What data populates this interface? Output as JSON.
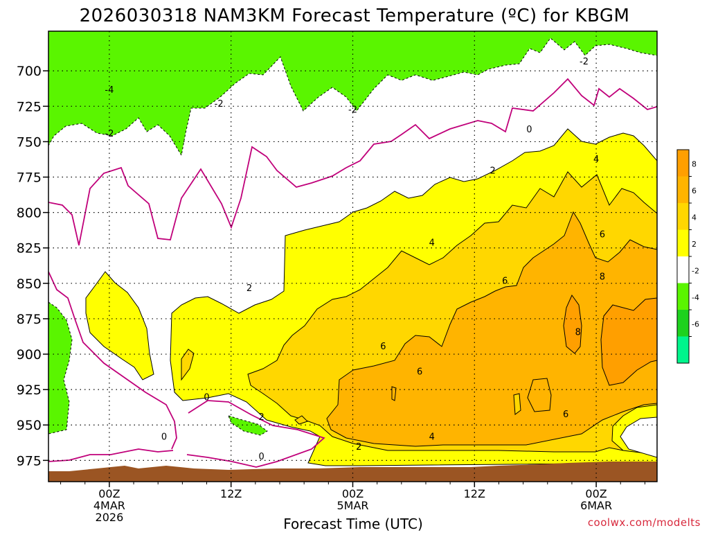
{
  "chart_data": {
    "type": "heatmap",
    "title": "2026030318 NAM3KM Forecast Temperature (ºC) for KBGM",
    "xlabel": "Forecast Time (UTC)",
    "ylabel": "",
    "watermark": "coolwx.com/modelts",
    "x_range_hours": [
      -5,
      45
    ],
    "y_range_hpa": [
      990,
      672
    ],
    "y_ticks": [
      {
        "value": 700,
        "label": "700"
      },
      {
        "value": 725,
        "label": "725"
      },
      {
        "value": 750,
        "label": "750"
      },
      {
        "value": 775,
        "label": "775"
      },
      {
        "value": 800,
        "label": "800"
      },
      {
        "value": 825,
        "label": "825"
      },
      {
        "value": 850,
        "label": "850"
      },
      {
        "value": 875,
        "label": "875"
      },
      {
        "value": 900,
        "label": "900"
      },
      {
        "value": 925,
        "label": "925"
      },
      {
        "value": 950,
        "label": "950"
      },
      {
        "value": 975,
        "label": "975"
      }
    ],
    "x_ticks": [
      {
        "hour": 0,
        "line1": "00Z",
        "line2": "4MAR",
        "line3": "2026"
      },
      {
        "hour": 10,
        "line1": "12Z",
        "line2": "",
        "line3": ""
      },
      {
        "hour": 20,
        "line1": "00Z",
        "line2": "5MAR",
        "line3": ""
      },
      {
        "hour": 30,
        "line1": "12Z",
        "line2": "",
        "line3": ""
      },
      {
        "hour": 40,
        "line1": "00Z",
        "line2": "6MAR",
        "line3": ""
      }
    ],
    "colorbar": [
      {
        "range": [
          8,
          10
        ],
        "color": "#ff9f00",
        "label": "8"
      },
      {
        "range": [
          6,
          8
        ],
        "color": "#ffb400",
        "label": "6"
      },
      {
        "range": [
          4,
          6
        ],
        "color": "#ffd700",
        "label": "4"
      },
      {
        "range": [
          2,
          4
        ],
        "color": "#ffff00",
        "label": "2"
      },
      {
        "range": [
          -2,
          2
        ],
        "color": "#ffffff",
        "label": "-2"
      },
      {
        "range": [
          -4,
          -2
        ],
        "color": "#5af500",
        "label": "-4"
      },
      {
        "range": [
          -6,
          -4
        ],
        "color": "#1ed21e",
        "label": "-6"
      },
      {
        "range": [
          -8,
          -6
        ],
        "color": "#00f58c",
        "label": ""
      }
    ],
    "ground_color": "#9b5523",
    "zero_isotherm_color": "#c0007a",
    "contour_labels": [
      {
        "text": "-2",
        "hour": 39.0,
        "hpa": 693
      },
      {
        "text": "-4",
        "hour": 0.0,
        "hpa": 713
      },
      {
        "text": "-2",
        "hour": 9.0,
        "hpa": 723
      },
      {
        "text": "-2",
        "hour": 20.0,
        "hpa": 727
      },
      {
        "text": "-2",
        "hour": 0.0,
        "hpa": 744
      },
      {
        "text": "0",
        "hour": 34.5,
        "hpa": 741
      },
      {
        "text": "4",
        "hour": 40.0,
        "hpa": 762
      },
      {
        "text": "2",
        "hour": 31.5,
        "hpa": 770
      },
      {
        "text": "4",
        "hour": 26.5,
        "hpa": 821
      },
      {
        "text": "6",
        "hour": 40.5,
        "hpa": 815
      },
      {
        "text": "6",
        "hour": 32.5,
        "hpa": 848
      },
      {
        "text": "8",
        "hour": 40.5,
        "hpa": 845
      },
      {
        "text": "2",
        "hour": 11.5,
        "hpa": 853
      },
      {
        "text": "8",
        "hour": 38.5,
        "hpa": 884
      },
      {
        "text": "6",
        "hour": 22.5,
        "hpa": 894
      },
      {
        "text": "6",
        "hour": 25.5,
        "hpa": 912
      },
      {
        "text": "0",
        "hour": 8.0,
        "hpa": 930
      },
      {
        "text": "2",
        "hour": 12.5,
        "hpa": 944
      },
      {
        "text": "6",
        "hour": 37.5,
        "hpa": 942
      },
      {
        "text": "0",
        "hour": 4.5,
        "hpa": 958
      },
      {
        "text": "4",
        "hour": 26.5,
        "hpa": 958
      },
      {
        "text": "2",
        "hour": 20.5,
        "hpa": 965
      },
      {
        "text": "0",
        "hour": 12.5,
        "hpa": 972
      }
    ]
  }
}
